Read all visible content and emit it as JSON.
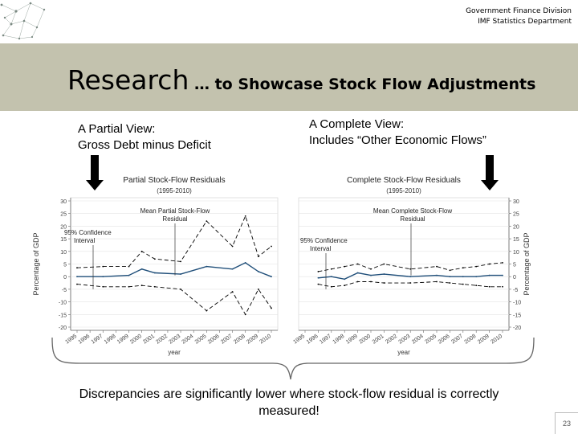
{
  "header": {
    "line1": "Government Finance Division",
    "line2": "IMF Statistics Department"
  },
  "title": {
    "main": "Research",
    "rest": " … to Showcase Stock Flow Adjustments"
  },
  "partial_view": {
    "line1": "A Partial View:",
    "line2": "Gross Debt minus Deficit"
  },
  "complete_view": {
    "line1": "A Complete View:",
    "line2": "Includes “Other Economic Flows”"
  },
  "caption": "Discrepancies are significantly lower where stock-flow residual is correctly measured!",
  "page_number": "23",
  "colors": {
    "banner": "#c3c2ae",
    "mean_line": "#1f4e79",
    "bounds": "#000000"
  },
  "chart_data": [
    {
      "type": "line",
      "title": "Partial Stock-Flow Residuals",
      "subtitle": "(1995-2010)",
      "xlabel": "year",
      "ylabel": "Percentage of GDP",
      "ylim": [
        -20,
        30
      ],
      "yticks": [
        "30",
        "25",
        "20",
        "15",
        "10",
        "5",
        "0",
        "-5",
        "-10",
        "-15",
        "-20"
      ],
      "categories": [
        "1995",
        "1996",
        "1997",
        "1998",
        "1999",
        "2000",
        "2001",
        "2002",
        "2003",
        "2004",
        "2005",
        "2006",
        "2007",
        "2008",
        "2009",
        "2010"
      ],
      "annotations": {
        "mean": "Mean Partial Stock-Flow Residual",
        "mean_line1": "Mean Partial Stock-Flow",
        "mean_line2": "Residual",
        "ci_line1": "95% Confidence",
        "ci_line2": "Interval"
      },
      "series": [
        {
          "name": "Upper bound",
          "values": [
            3.5,
            null,
            4,
            null,
            4,
            10,
            7,
            null,
            6,
            null,
            22,
            null,
            12,
            24,
            8,
            12
          ]
        },
        {
          "name": "Mean",
          "values": [
            0,
            null,
            0,
            null,
            0.5,
            3,
            1.5,
            null,
            1,
            null,
            4,
            null,
            3,
            5.5,
            2,
            0
          ]
        },
        {
          "name": "Lower bound",
          "values": [
            -3,
            null,
            -4,
            null,
            -4,
            -3.5,
            -4,
            null,
            -5,
            null,
            -13.5,
            null,
            -6,
            -15,
            -5,
            -12.5
          ]
        }
      ]
    },
    {
      "type": "line",
      "title": "Complete Stock-Flow Residuals",
      "subtitle": "(1995-2010)",
      "xlabel": "year",
      "ylabel": "Percentage of GDP",
      "ylim": [
        -20,
        30
      ],
      "yticks": [
        "30",
        "25",
        "20",
        "15",
        "10",
        "5",
        "0",
        "-5",
        "-10",
        "-15",
        "-20"
      ],
      "categories": [
        "1995",
        "1996",
        "1997",
        "1998",
        "1999",
        "2000",
        "2001",
        "2002",
        "2003",
        "2004",
        "2005",
        "2006",
        "2007",
        "2008",
        "2009",
        "2010"
      ],
      "annotations": {
        "mean": "Mean Complete Stock-Flow Residual",
        "mean_line1": "Mean Complete Stock-Flow",
        "mean_line2": "Residual",
        "ci_line1": "95% Confidence",
        "ci_line2": "Interval"
      },
      "series": [
        {
          "name": "Upper bound",
          "values": [
            null,
            2,
            3,
            4,
            5,
            3,
            5,
            null,
            3,
            null,
            4,
            2.5,
            3.5,
            4,
            5,
            5.5
          ]
        },
        {
          "name": "Mean",
          "values": [
            null,
            -0.5,
            0,
            -1,
            1.5,
            0.5,
            1,
            null,
            0,
            null,
            0.5,
            0,
            0,
            0,
            0.5,
            0.5
          ]
        },
        {
          "name": "Lower bound",
          "values": [
            null,
            -3,
            -4,
            -3.5,
            -2,
            -2,
            -2.5,
            null,
            -2.5,
            null,
            -2,
            -2.5,
            -3,
            -3.5,
            -4,
            -4
          ]
        }
      ]
    }
  ]
}
